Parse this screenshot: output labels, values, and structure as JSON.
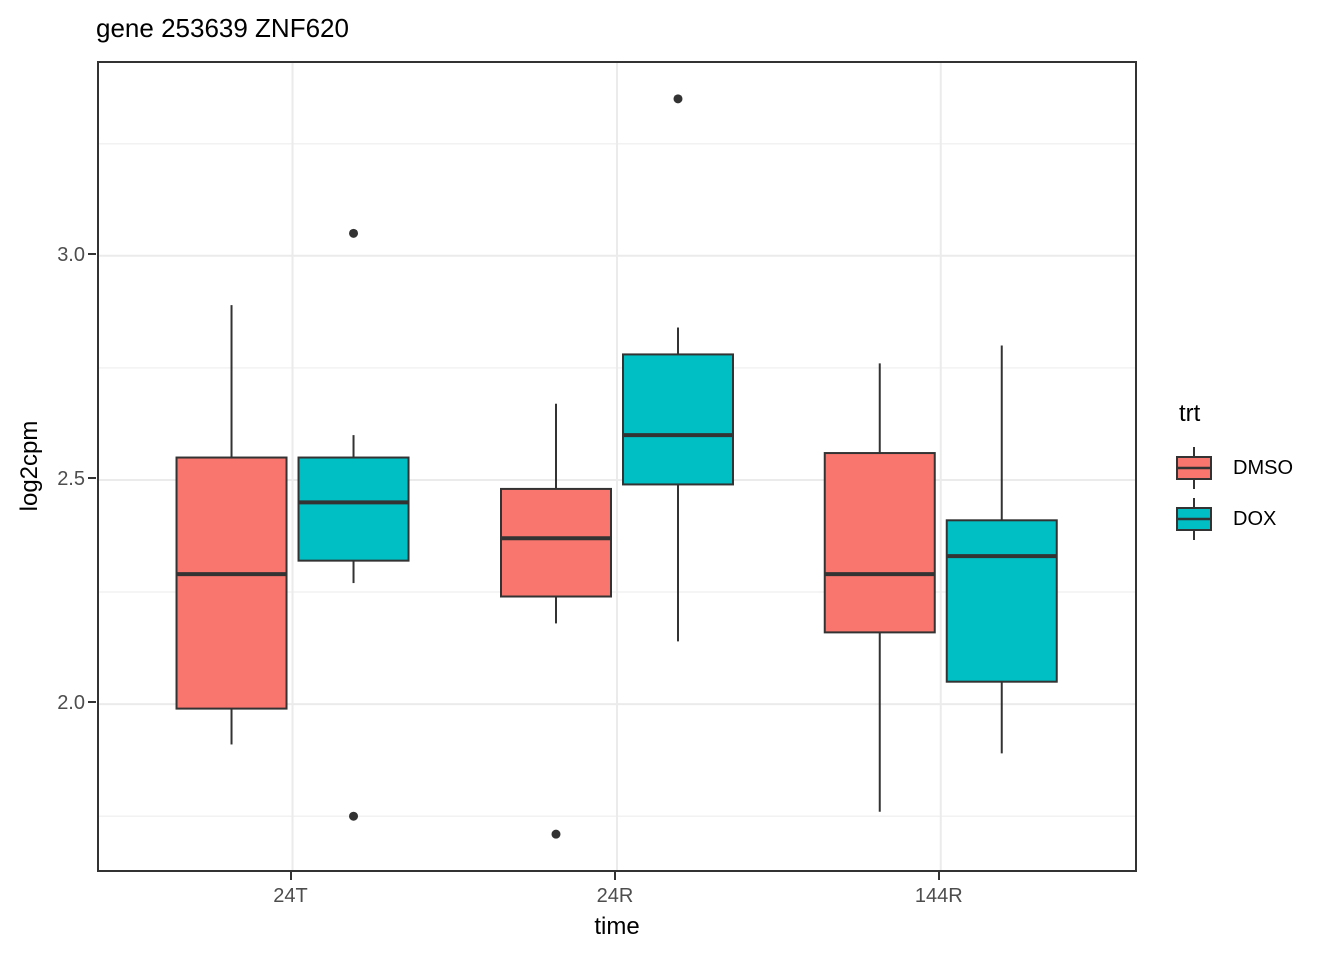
{
  "chart_data": {
    "type": "boxplot",
    "title": "gene 253639 ZNF620",
    "xlabel": "time",
    "ylabel": "log2cpm",
    "categories": [
      "24T",
      "24R",
      "144R"
    ],
    "ylim": [
      1.63,
      3.43
    ],
    "y_ticks": [
      {
        "label": "3.0",
        "value": 3.0
      },
      {
        "label": "2.5",
        "value": 2.5
      },
      {
        "label": "2.0",
        "value": 2.0
      }
    ],
    "y_minor_gridlines": [
      1.75,
      2.25,
      2.75,
      3.25
    ],
    "grid": "major and minor horizontal gridlines, major vertical gridlines at category centers, light gray on white panel",
    "legend": {
      "title": "trt",
      "position": "right",
      "entries": [
        {
          "label": "DMSO",
          "color": "#F8766D"
        },
        {
          "label": "DOX",
          "color": "#00BFC4"
        }
      ]
    },
    "colors": {
      "dmso_fill": "#F8766D",
      "dox_fill": "#00BFC4",
      "box_outline": "#333333",
      "gridline_major": "#EBEBEB",
      "gridline_minor": "#F2F2F2",
      "tick_text": "#4d4d4d"
    },
    "series": [
      {
        "name": "DMSO",
        "color": "#F8766D",
        "boxes": [
          {
            "category": "24T",
            "whisker_low": 1.91,
            "q1": 1.99,
            "median": 2.29,
            "q3": 2.55,
            "whisker_high": 2.89,
            "outliers": []
          },
          {
            "category": "24R",
            "whisker_low": 2.18,
            "q1": 2.24,
            "median": 2.37,
            "q3": 2.48,
            "whisker_high": 2.67,
            "outliers": [
              1.71
            ]
          },
          {
            "category": "144R",
            "whisker_low": 1.76,
            "q1": 2.16,
            "median": 2.29,
            "q3": 2.56,
            "whisker_high": 2.76,
            "outliers": []
          }
        ]
      },
      {
        "name": "DOX",
        "color": "#00BFC4",
        "boxes": [
          {
            "category": "24T",
            "whisker_low": 2.27,
            "q1": 2.32,
            "median": 2.45,
            "q3": 2.55,
            "whisker_high": 2.6,
            "outliers": [
              3.05,
              1.75
            ]
          },
          {
            "category": "24R",
            "whisker_low": 2.14,
            "q1": 2.49,
            "median": 2.6,
            "q3": 2.78,
            "whisker_high": 2.84,
            "outliers": [
              3.35
            ]
          },
          {
            "category": "144R",
            "whisker_low": 1.89,
            "q1": 2.05,
            "median": 2.33,
            "q3": 2.41,
            "whisker_high": 2.8,
            "outliers": []
          }
        ]
      }
    ]
  }
}
